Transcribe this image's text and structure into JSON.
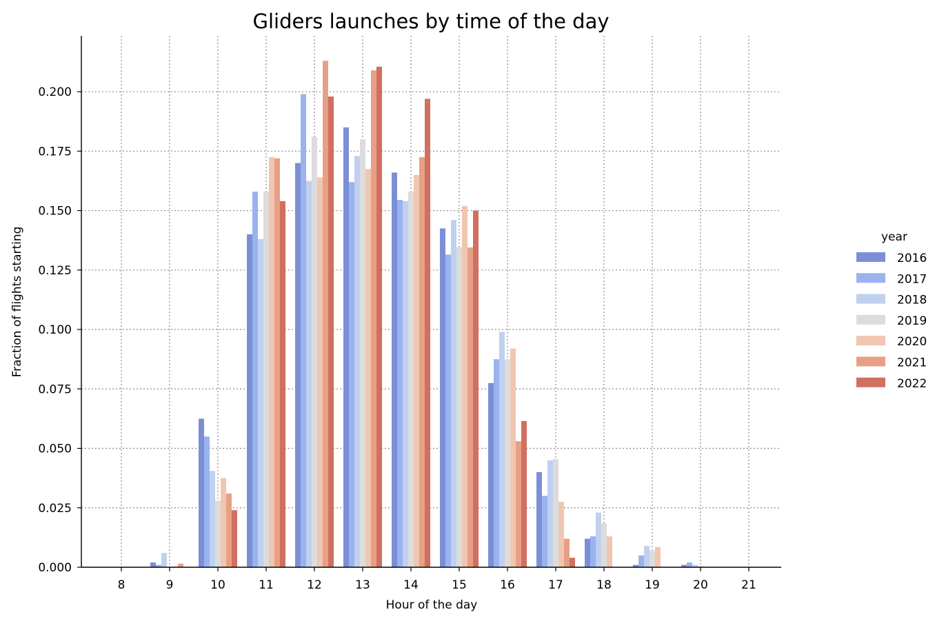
{
  "chart_data": {
    "type": "bar",
    "title": "Gliders launches by time of the day",
    "xlabel": "Hour of the day",
    "ylabel": "Fraction of flights starting",
    "categories": [
      "8",
      "9",
      "10",
      "11",
      "12",
      "13",
      "14",
      "15",
      "16",
      "17",
      "18",
      "19",
      "20",
      "21"
    ],
    "ylim": [
      0,
      0.2235
    ],
    "yticks": [
      "0.000",
      "0.025",
      "0.050",
      "0.075",
      "0.100",
      "0.125",
      "0.150",
      "0.175",
      "0.200"
    ],
    "grid": true,
    "legend": {
      "title": "year",
      "placement": "right"
    },
    "series": [
      {
        "name": "2016",
        "color": "#7b8fd8",
        "values": [
          0,
          0.002,
          0.0625,
          0.14,
          0.17,
          0.185,
          0.166,
          0.1425,
          0.0775,
          0.04,
          0.012,
          0.001,
          0.001,
          0
        ]
      },
      {
        "name": "2017",
        "color": "#9ab2ee",
        "values": [
          0,
          0.001,
          0.055,
          0.158,
          0.199,
          0.162,
          0.1545,
          0.1315,
          0.0875,
          0.03,
          0.013,
          0.005,
          0.002,
          0
        ]
      },
      {
        "name": "2018",
        "color": "#c0d0ef",
        "values": [
          0,
          0.006,
          0.0405,
          0.138,
          0.1625,
          0.173,
          0.154,
          0.146,
          0.099,
          0.045,
          0.023,
          0.009,
          0.001,
          0
        ]
      },
      {
        "name": "2019",
        "color": "#dcdcdc",
        "values": [
          0,
          0.0002,
          0.028,
          0.158,
          0.181,
          0.18,
          0.158,
          0.1345,
          0.0875,
          0.0455,
          0.0185,
          0.007,
          0.0005,
          0
        ]
      },
      {
        "name": "2020",
        "color": "#f0c6b0",
        "values": [
          0,
          0.0002,
          0.0375,
          0.1725,
          0.164,
          0.1675,
          0.165,
          0.152,
          0.092,
          0.0275,
          0.013,
          0.0085,
          0,
          0
        ]
      },
      {
        "name": "2021",
        "color": "#e7a086",
        "values": [
          0,
          0.0015,
          0.031,
          0.172,
          0.213,
          0.209,
          0.1725,
          0.1345,
          0.053,
          0.012,
          0,
          0,
          0,
          0
        ]
      },
      {
        "name": "2022",
        "color": "#d07060",
        "values": [
          0,
          0,
          0.024,
          0.154,
          0.198,
          0.2105,
          0.197,
          0.15,
          0.0615,
          0.004,
          0,
          0,
          0,
          0
        ]
      }
    ]
  }
}
